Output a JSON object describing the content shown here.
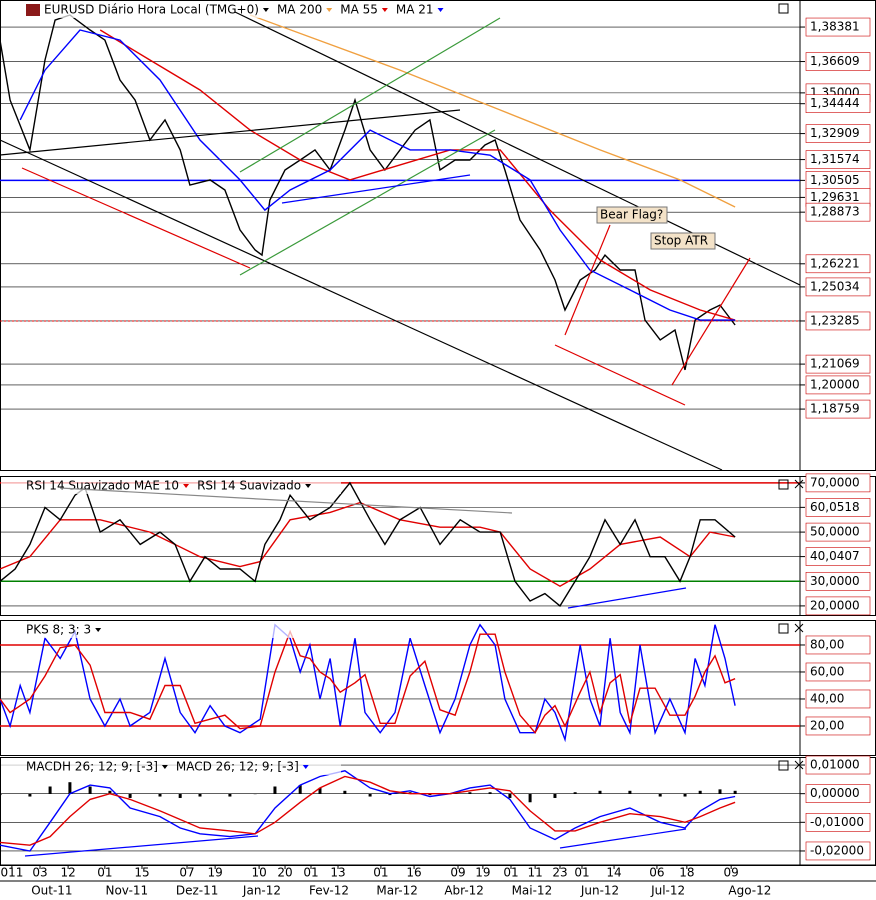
{
  "chart_data": [
    {
      "type": "line",
      "title": "EURUSD Diário Hora Local (TMG+0)",
      "color": "#000000",
      "xlim": [
        0,
        222
      ],
      "ylim": [
        1.1563,
        1.3977
      ],
      "grid": true,
      "yticks": [
        {
          "value": 1.38381,
          "label": "1,38381"
        },
        {
          "value": 1.36609,
          "label": "1,36609"
        },
        {
          "value": 1.35,
          "label": "1,35000"
        },
        {
          "value": 1.34444,
          "label": "1,34444"
        },
        {
          "value": 1.32909,
          "label": "1,32909"
        },
        {
          "value": 1.31574,
          "label": "1,31574"
        },
        {
          "value": 1.30505,
          "label": "1,30505"
        },
        {
          "value": 1.29631,
          "label": "1,29631"
        },
        {
          "value": 1.28873,
          "label": "1,28873"
        },
        {
          "value": 1.26221,
          "label": "1,26221"
        },
        {
          "value": 1.25034,
          "label": "1,25034"
        },
        {
          "value": 1.23285,
          "label": "1,23285"
        },
        {
          "value": 1.21069,
          "label": "1,21069"
        },
        {
          "value": 1.2,
          "label": "1,20000"
        },
        {
          "value": 1.18759,
          "label": "1,18759"
        }
      ],
      "reference_lines": [
        {
          "value": 1.30505,
          "color": "#0000ff",
          "dashed": false
        },
        {
          "value": 1.23285,
          "color": "#e00000",
          "dashed": true
        }
      ],
      "x": [
        0,
        2.8,
        8.3,
        12.5,
        15.3,
        19.4,
        25,
        29.1,
        33.3,
        37.5,
        41.6,
        45.8,
        50,
        52.7,
        58.3,
        62.4,
        66.6,
        70.8,
        72.7,
        74.9,
        79.1,
        83.3,
        87.4,
        91.6,
        95.7,
        98.5,
        102.7,
        106.8,
        111,
        115.2,
        119.3,
        122.1,
        126.3,
        130.4,
        134.6,
        137.4,
        140.1,
        144.3,
        149.9,
        154,
        156.8,
        161,
        165.1,
        167.9,
        172.1,
        176.2,
        179,
        183.2,
        187.3,
        190.1,
        192.9,
        197,
        199.8,
        204
      ],
      "values": [
        1.3771,
        1.3463,
        1.3207,
        1.3669,
        1.3874,
        1.39,
        1.3823,
        1.3771,
        1.3566,
        1.3463,
        1.3258,
        1.3361,
        1.3207,
        1.3027,
        1.3053,
        1.3001,
        1.2796,
        1.2693,
        1.2667,
        1.295,
        1.3104,
        1.3155,
        1.3207,
        1.3104,
        1.3309,
        1.3463,
        1.3207,
        1.3104,
        1.3207,
        1.3309,
        1.3361,
        1.3104,
        1.3155,
        1.3155,
        1.3232,
        1.3258,
        1.3104,
        1.2847,
        1.2693,
        1.2539,
        1.2385,
        1.2539,
        1.259,
        1.2667,
        1.259,
        1.259,
        1.2333,
        1.2231,
        1.2282,
        1.2077,
        1.2333,
        1.2385,
        1.241,
        1.2308
      ],
      "series": [
        {
          "name": "MA 200",
          "color": "#f0a040",
          "x": [
            69.4,
            111,
            138.8,
            166.5,
            188.7,
            204
          ],
          "values": [
            1.39,
            1.3617,
            1.3412,
            1.3207,
            1.3053,
            1.2914
          ]
        },
        {
          "name": "MA 55",
          "color": "#e00000",
          "x": [
            27.8,
            41.6,
            55.5,
            69.4,
            83.3,
            97.1,
            111,
            124.9,
            138.8,
            152.6,
            166.5,
            180.4,
            194.3,
            204
          ],
          "values": [
            1.3823,
            1.3669,
            1.3515,
            1.3309,
            1.3155,
            1.3053,
            1.313,
            1.3207,
            1.3207,
            1.2898,
            1.2642,
            1.2488,
            1.2385,
            1.2333
          ]
        },
        {
          "name": "MA 21",
          "color": "#0000ff",
          "x": [
            5.6,
            12.5,
            22.2,
            33.3,
            44.4,
            55.5,
            66.6,
            73.5,
            80.5,
            91.6,
            102.7,
            113.8,
            124.9,
            136,
            147.1,
            155.4,
            163.7,
            174.8,
            185.9,
            194.3,
            204
          ],
          "values": [
            1.3361,
            1.3617,
            1.3823,
            1.3771,
            1.3566,
            1.3258,
            1.3053,
            1.2898,
            1.3001,
            1.3104,
            1.3309,
            1.3207,
            1.3207,
            1.318,
            1.3053,
            1.2796,
            1.259,
            1.2488,
            1.2385,
            1.2333,
            1.2333
          ]
        }
      ],
      "annotations": [
        "Bear Flag?",
        "Stop ATR"
      ]
    },
    {
      "type": "line",
      "xlim": [
        0,
        222
      ],
      "ylim": [
        16.3,
        72.8
      ],
      "grid": true,
      "yticks": [
        {
          "value": 70,
          "label": "70,0000"
        },
        {
          "value": 60.0518,
          "label": "60,0518"
        },
        {
          "value": 50,
          "label": "50,0000"
        },
        {
          "value": 40.0407,
          "label": "40,0407"
        },
        {
          "value": 30,
          "label": "30,0000"
        },
        {
          "value": 20,
          "label": "20,0000"
        }
      ],
      "reference_lines": [
        {
          "value": 70,
          "color": "#e00000",
          "dashed": false
        },
        {
          "value": 30,
          "color": "#008000",
          "dashed": false
        }
      ],
      "series": [
        {
          "name": "RSI 14 Suavizado MAE 10",
          "color": "#e00000",
          "x": [
            0,
            8.3,
            16.7,
            27.8,
            41.6,
            55.5,
            66.6,
            72.2,
            80.5,
            91.6,
            99.9,
            111,
            122.1,
            133.2,
            138.8,
            147.1,
            155.4,
            163.7,
            172.1,
            183.2,
            191.5,
            197,
            204
          ],
          "values": [
            35,
            40,
            55,
            55,
            50,
            40,
            36,
            38,
            55,
            58,
            62,
            55,
            52,
            52,
            50,
            35,
            28,
            35,
            45,
            48,
            40,
            50,
            48
          ]
        },
        {
          "name": "RSI 14 Suavizado",
          "color": "#000000",
          "x": [
            0,
            4.2,
            8.3,
            12.5,
            16.7,
            20.8,
            23.6,
            27.8,
            33.3,
            38.9,
            44.4,
            48.6,
            52.7,
            56.9,
            61.1,
            66.6,
            70.8,
            73.5,
            77.7,
            80.5,
            86,
            91.6,
            97.1,
            102.7,
            106.8,
            111,
            116.6,
            122.1,
            127.7,
            133.2,
            138.8,
            142.9,
            147.1,
            151.2,
            155.4,
            159.6,
            163.7,
            167.9,
            172.1,
            176.2,
            180.4,
            184.5,
            188.7,
            191.5,
            194.3,
            198.4,
            204
          ],
          "values": [
            30,
            35,
            45,
            60,
            55,
            65,
            68,
            50,
            55,
            45,
            50,
            45,
            30,
            40,
            35,
            35,
            30,
            45,
            55,
            65,
            55,
            60,
            70,
            55,
            45,
            55,
            60,
            45,
            55,
            50,
            50,
            30,
            22,
            25,
            20,
            30,
            40,
            55,
            45,
            55,
            40,
            40,
            30,
            40,
            55,
            55,
            48
          ]
        }
      ]
    },
    {
      "type": "line",
      "title": "PKS 8; 3; 3",
      "xlim": [
        0,
        222
      ],
      "ylim": [
        -1.5,
        98.5
      ],
      "grid": true,
      "yticks": [
        {
          "value": 80,
          "label": "80,00"
        },
        {
          "value": 60,
          "label": "60,00"
        },
        {
          "value": 40,
          "label": "40,00"
        },
        {
          "value": 20,
          "label": "20,00"
        }
      ],
      "reference_lines": [
        {
          "value": 80,
          "color": "#e00000",
          "dashed": false
        },
        {
          "value": 20,
          "color": "#e00000",
          "dashed": false
        }
      ],
      "x": [
        0,
        2.8,
        5.6,
        8.3,
        12.5,
        16.7,
        20.8,
        25,
        29.1,
        33.3,
        36.1,
        41.6,
        45.8,
        50,
        54.1,
        58.3,
        62.4,
        66.6,
        72.2,
        76.3,
        80.5,
        83.3,
        86,
        88.8,
        91.6,
        94.4,
        98.5,
        101.3,
        105.5,
        109.6,
        113.8,
        117.9,
        122.1,
        126.3,
        130.4,
        133.2,
        137.4,
        140.1,
        144.3,
        148.5,
        151.2,
        154,
        156.8,
        161,
        163.7,
        166.5,
        169.3,
        172.1,
        174.8,
        177.6,
        181.8,
        185.9,
        190.1,
        192.9,
        195.6,
        198.4,
        201.2,
        204
      ],
      "series": [
        {
          "color": "#0000ff",
          "values": [
            40,
            20,
            50,
            30,
            85,
            70,
            90,
            40,
            20,
            40,
            20,
            30,
            70,
            30,
            15,
            35,
            20,
            15,
            25,
            95,
            85,
            60,
            80,
            40,
            70,
            20,
            85,
            30,
            15,
            30,
            85,
            50,
            15,
            40,
            80,
            95,
            80,
            40,
            15,
            15,
            40,
            30,
            10,
            80,
            40,
            20,
            85,
            30,
            15,
            80,
            15,
            40,
            15,
            70,
            50,
            95,
            70,
            35
          ]
        },
        {
          "color": "#e00000",
          "values": [
            40,
            30,
            35,
            40,
            57,
            78,
            80,
            65,
            30,
            30,
            30,
            25,
            50,
            50,
            22,
            25,
            28,
            18,
            20,
            60,
            90,
            72,
            70,
            60,
            55,
            45,
            52,
            58,
            22,
            22,
            57,
            68,
            32,
            28,
            60,
            88,
            88,
            60,
            28,
            15,
            28,
            35,
            20,
            45,
            60,
            30,
            52,
            58,
            22,
            48,
            48,
            28,
            28,
            42,
            60,
            72,
            52,
            55
          ]
        }
      ]
    },
    {
      "type": "line",
      "xlim": [
        0,
        222
      ],
      "ylim": [
        -0.0249,
        0.0128
      ],
      "grid": true,
      "yticks": [
        {
          "value": 0.01,
          "label": "0,01000"
        },
        {
          "value": 0,
          "label": "0,00000"
        },
        {
          "value": -0.01,
          "label": "-0,01000"
        },
        {
          "value": -0.02,
          "label": "-0,02000"
        }
      ],
      "x": [
        0,
        8.3,
        13.9,
        19.4,
        25,
        30.5,
        36.1,
        44.4,
        50,
        55.5,
        63.8,
        70.8,
        76.3,
        83.3,
        88.8,
        95.7,
        102.7,
        108.2,
        113.8,
        119.3,
        124.9,
        130.4,
        136,
        141.5,
        147.1,
        154,
        159.6,
        166.5,
        174.8,
        183.2,
        190.1,
        194.3,
        199.8,
        204
      ],
      "series": [
        {
          "name": "MACDH 26; 12; 9; [-3]",
          "color": "#000000",
          "type": "bar",
          "values": [
            -0.0005,
            -0.001,
            0.0025,
            0.004,
            0.0025,
            0.001,
            -0.0015,
            -0.001,
            -0.0015,
            -0.001,
            -0.001,
            0,
            0.0025,
            0.003,
            0.002,
            0.001,
            -0.001,
            -0.0005,
            0.0005,
            -0.0005,
            0,
            0.0005,
            0.0005,
            -0.0015,
            -0.003,
            -0.0015,
            0.0005,
            0.001,
            0.001,
            -0.001,
            -0.001,
            0.001,
            0.0015,
            0.001
          ]
        },
        {
          "name": "MACD 26; 12; 9; [-3]",
          "color": "#0000ff",
          "type": "line",
          "values": [
            -0.018,
            -0.02,
            -0.01,
            0,
            0.003,
            0.002,
            -0.005,
            -0.008,
            -0.012,
            -0.014,
            -0.015,
            -0.014,
            -0.005,
            0.003,
            0.006,
            0.008,
            0.002,
            0,
            0.001,
            -0.001,
            0,
            0.002,
            0.003,
            -0.002,
            -0.012,
            -0.016,
            -0.012,
            -0.008,
            -0.005,
            -0.01,
            -0.012,
            -0.006,
            -0.002,
            -0.001
          ]
        },
        {
          "color": "#e00000",
          "type": "line",
          "values": [
            -0.017,
            -0.018,
            -0.015,
            -0.008,
            -0.002,
            0,
            -0.002,
            -0.006,
            -0.009,
            -0.012,
            -0.013,
            -0.014,
            -0.01,
            -0.003,
            0.002,
            0.006,
            0.004,
            0.001,
            0,
            0,
            0,
            0.001,
            0.002,
            0.001,
            -0.006,
            -0.013,
            -0.013,
            -0.01,
            -0.007,
            -0.008,
            -0.01,
            -0.008,
            -0.005,
            -0.003
          ]
        }
      ],
      "xticks": [
        {
          "value": 3.3,
          "label": "011"
        },
        {
          "value": 11.1,
          "label": "03"
        },
        {
          "value": 18.9,
          "label": "12"
        },
        {
          "value": 29.1,
          "label": "01"
        },
        {
          "value": 39.4,
          "label": "15"
        },
        {
          "value": 51.9,
          "label": "07"
        },
        {
          "value": 59.7,
          "label": "19"
        },
        {
          "value": 71.9,
          "label": "10"
        },
        {
          "value": 79.1,
          "label": "20"
        },
        {
          "value": 86.3,
          "label": "01"
        },
        {
          "value": 93.8,
          "label": "13"
        },
        {
          "value": 105.7,
          "label": "01"
        },
        {
          "value": 114.9,
          "label": "16"
        },
        {
          "value": 127.1,
          "label": "09"
        },
        {
          "value": 134,
          "label": "19"
        },
        {
          "value": 141.8,
          "label": "01"
        },
        {
          "value": 148.5,
          "label": "11"
        },
        {
          "value": 155.4,
          "label": "23"
        },
        {
          "value": 161.5,
          "label": "01"
        },
        {
          "value": 170.4,
          "label": "14"
        },
        {
          "value": 182.3,
          "label": "06"
        },
        {
          "value": 190.6,
          "label": "18"
        },
        {
          "value": 202.9,
          "label": "09"
        }
      ],
      "month_ticks": [
        {
          "value": 14.4,
          "label": "Out-11"
        },
        {
          "value": 35.2,
          "label": "Nov-11"
        },
        {
          "value": 54.7,
          "label": "Dez-11"
        },
        {
          "value": 72.7,
          "label": "Jan-12"
        },
        {
          "value": 91.3,
          "label": "Fev-12"
        },
        {
          "value": 110.2,
          "label": "Mar-12"
        },
        {
          "value": 128.8,
          "label": "Abr-12"
        },
        {
          "value": 147.6,
          "label": "Mai-12"
        },
        {
          "value": 166.5,
          "label": "Jun-12"
        },
        {
          "value": 185.4,
          "label": "Jul-12"
        },
        {
          "value": 208.1,
          "label": "Ago-12"
        }
      ]
    }
  ]
}
